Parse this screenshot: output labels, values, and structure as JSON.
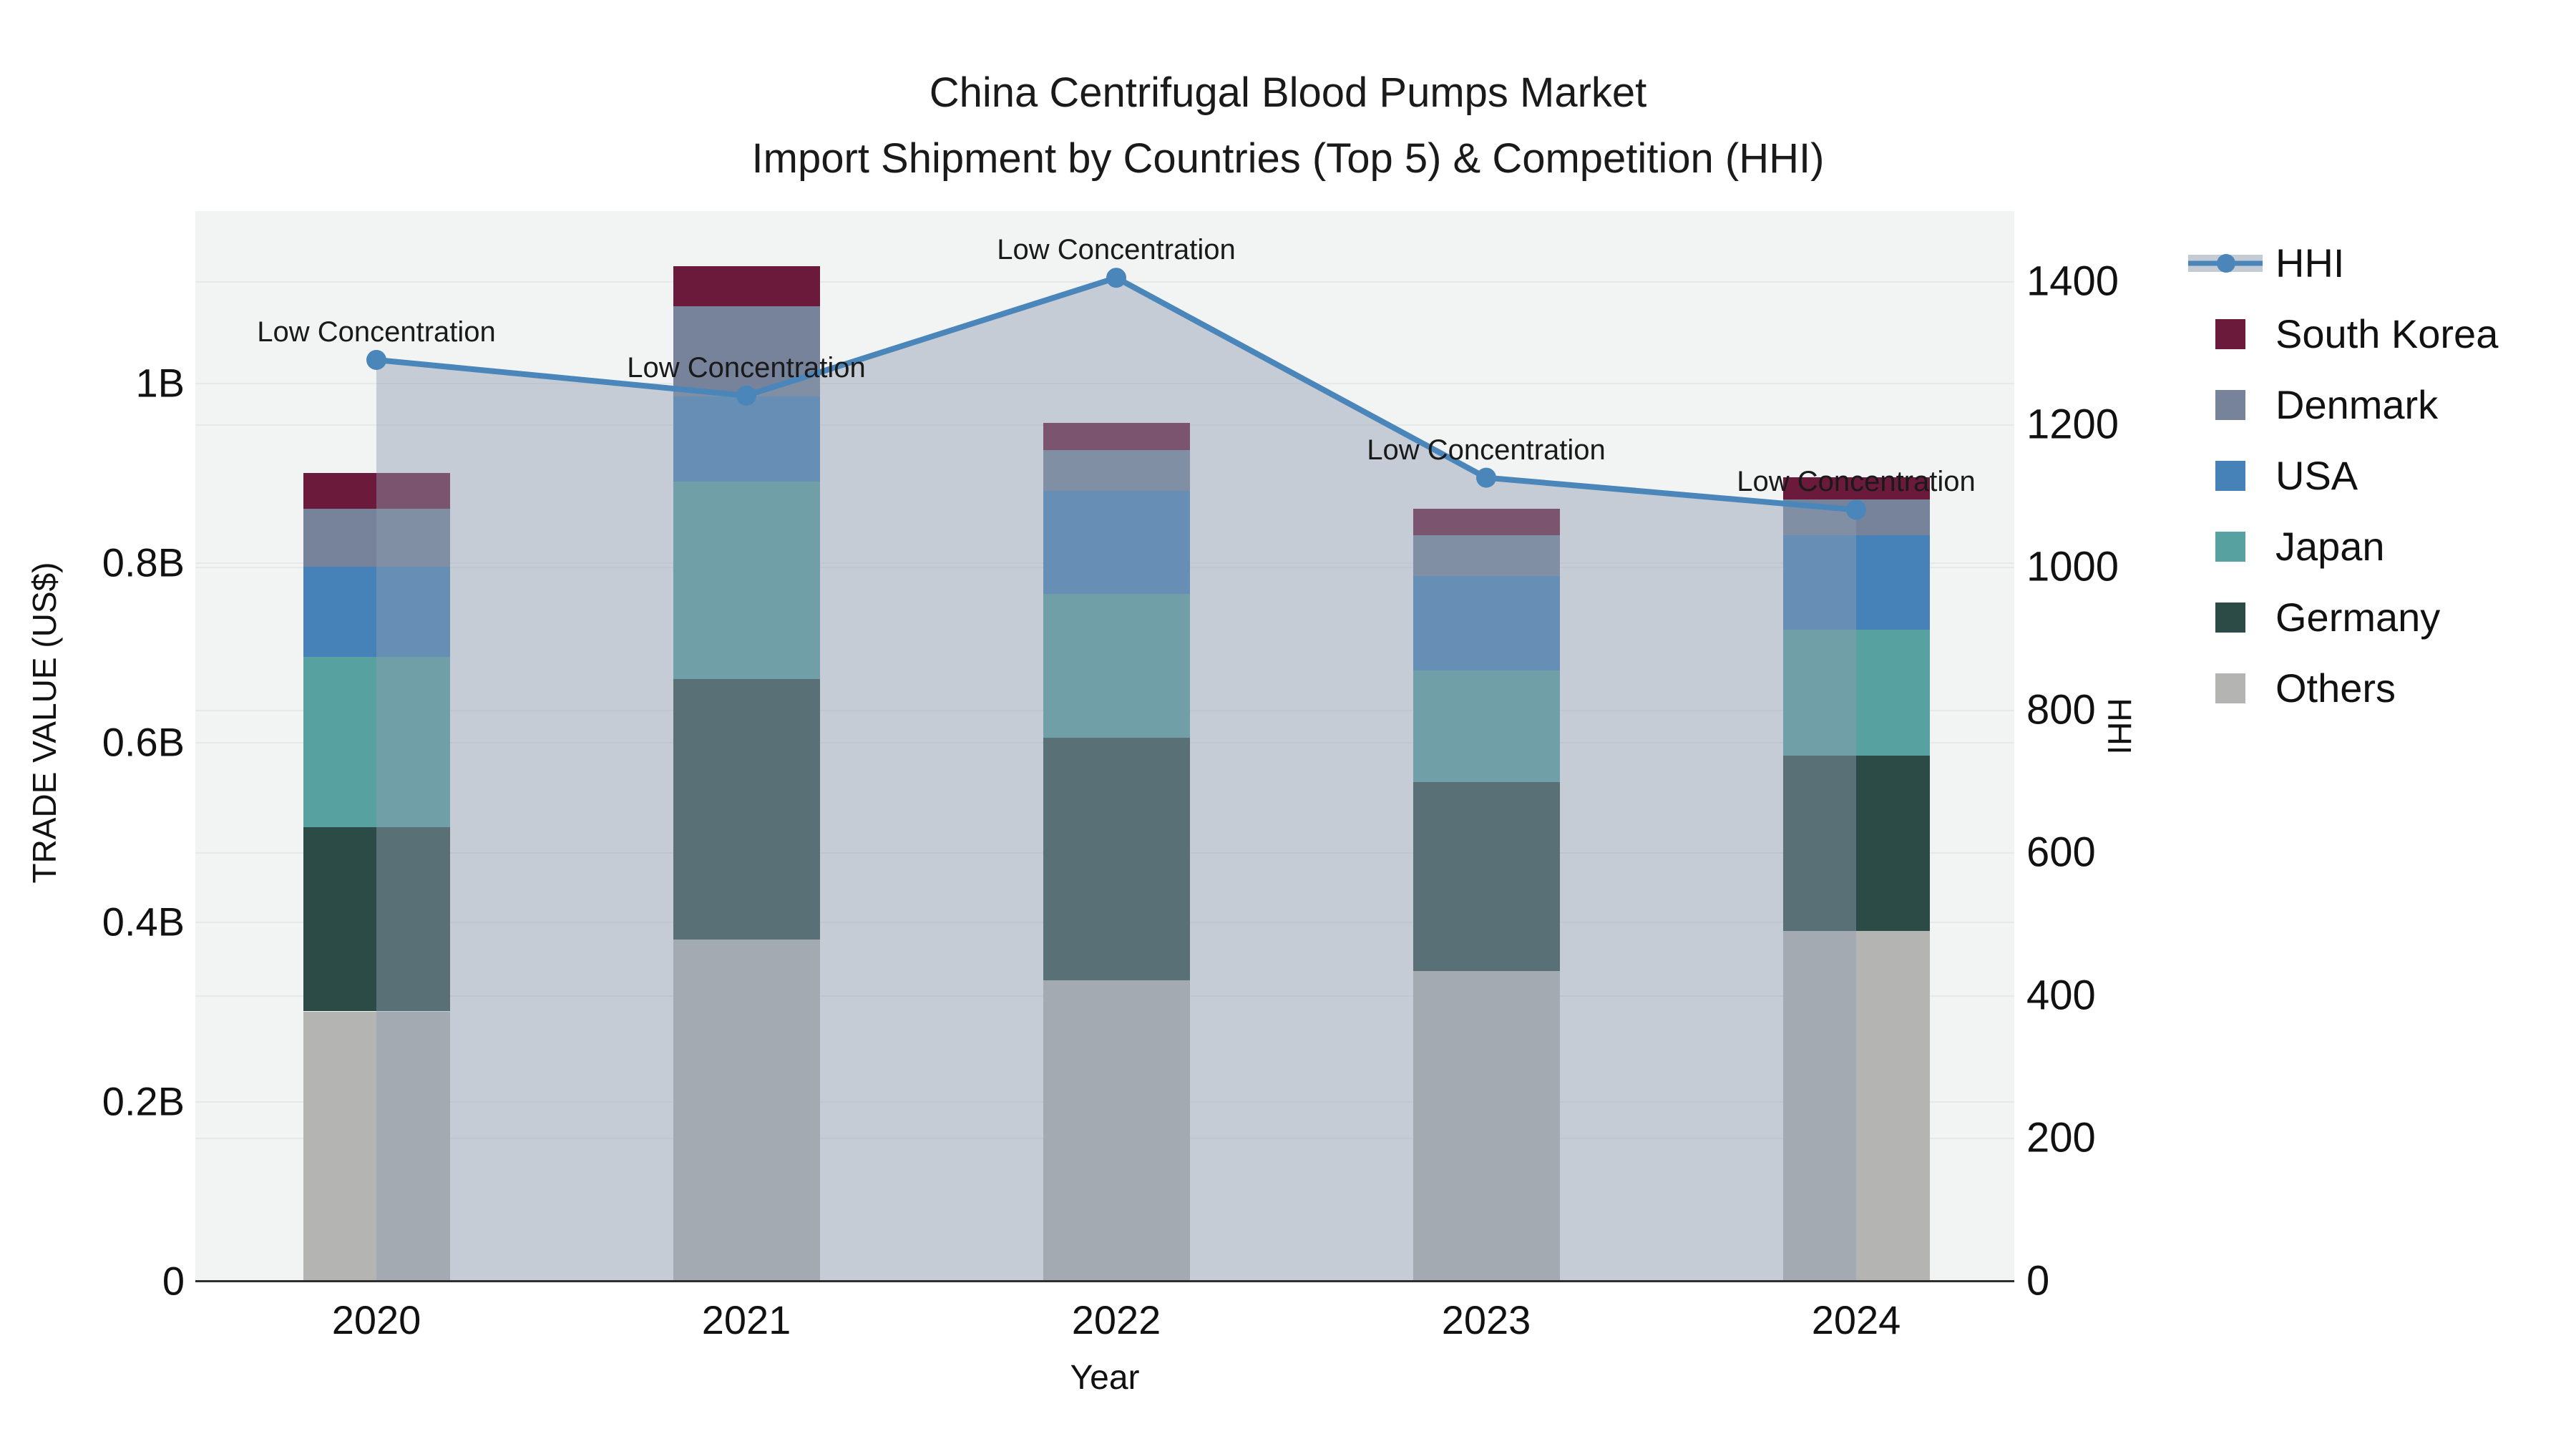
{
  "title": {
    "line1": "China Centrifugal Blood Pumps Market",
    "line2": "Import Shipment by Countries (Top 5) & Competition (HHI)"
  },
  "axes": {
    "left_title": "TRADE VALUE (US$)",
    "left_ticks": [
      {
        "label": "0",
        "value": 0
      },
      {
        "label": "0.2B",
        "value": 0.2
      },
      {
        "label": "0.4B",
        "value": 0.4
      },
      {
        "label": "0.6B",
        "value": 0.6
      },
      {
        "label": "0.8B",
        "value": 0.8
      },
      {
        "label": "1B",
        "value": 1.0
      }
    ],
    "right_title": "HHI",
    "right_ticks": [
      {
        "label": "0",
        "value": 0
      },
      {
        "label": "200",
        "value": 200
      },
      {
        "label": "400",
        "value": 400
      },
      {
        "label": "600",
        "value": 600
      },
      {
        "label": "800",
        "value": 800
      },
      {
        "label": "1000",
        "value": 1000
      },
      {
        "label": "1200",
        "value": 1200
      },
      {
        "label": "1400",
        "value": 1400
      }
    ],
    "x_title": "Year"
  },
  "legend": {
    "items": [
      {
        "label": "HHI",
        "type": "line",
        "color": "#4a86ba"
      },
      {
        "label": "South Korea",
        "type": "swatch",
        "color": "#6b1a3b"
      },
      {
        "label": "Denmark",
        "type": "swatch",
        "color": "#76839b"
      },
      {
        "label": "USA",
        "type": "swatch",
        "color": "#4682b8"
      },
      {
        "label": "Japan",
        "type": "swatch",
        "color": "#58a1a1"
      },
      {
        "label": "Germany",
        "type": "swatch",
        "color": "#2d4b46"
      },
      {
        "label": "Others",
        "type": "swatch",
        "color": "#b4b4b2"
      }
    ]
  },
  "chart_data": {
    "type": "bar",
    "subtype": "stacked-bars-with-line-overlay",
    "categories": [
      "2020",
      "2021",
      "2022",
      "2023",
      "2024"
    ],
    "bar_unit": "US$ billions (left axis, TRADE VALUE)",
    "stack_order_bottom_to_top": [
      "Others",
      "Germany",
      "Japan",
      "USA",
      "Denmark",
      "South Korea"
    ],
    "series": [
      {
        "name": "Others",
        "color": "#b4b4b2",
        "values": [
          0.3,
          0.38,
          0.335,
          0.345,
          0.39
        ]
      },
      {
        "name": "Germany",
        "color": "#2d4b46",
        "values": [
          0.205,
          0.29,
          0.27,
          0.21,
          0.195
        ]
      },
      {
        "name": "Japan",
        "color": "#58a1a1",
        "values": [
          0.19,
          0.22,
          0.16,
          0.125,
          0.14
        ]
      },
      {
        "name": "USA",
        "color": "#4682b8",
        "values": [
          0.1,
          0.095,
          0.115,
          0.105,
          0.105
        ]
      },
      {
        "name": "Denmark",
        "color": "#76839b",
        "values": [
          0.065,
          0.1,
          0.045,
          0.045,
          0.04
        ]
      },
      {
        "name": "South Korea",
        "color": "#6b1a3b",
        "values": [
          0.04,
          0.045,
          0.03,
          0.03,
          0.025
        ]
      }
    ],
    "line_series": {
      "name": "HHI",
      "axis": "right",
      "color": "#4a86ba",
      "marker": "circle",
      "area_fill": "rgba(144,157,177,0.45)",
      "values": [
        1290,
        1240,
        1405,
        1125,
        1080
      ]
    },
    "annotations": [
      "Low Concentration",
      "Low Concentration",
      "Low Concentration",
      "Low Concentration",
      "Low Concentration"
    ],
    "left_axis_range": [
      0,
      1.19
    ],
    "right_axis_range": [
      0,
      1493
    ],
    "grid": "horizontal, light, at both axes' major ticks",
    "legend_position": "right"
  }
}
